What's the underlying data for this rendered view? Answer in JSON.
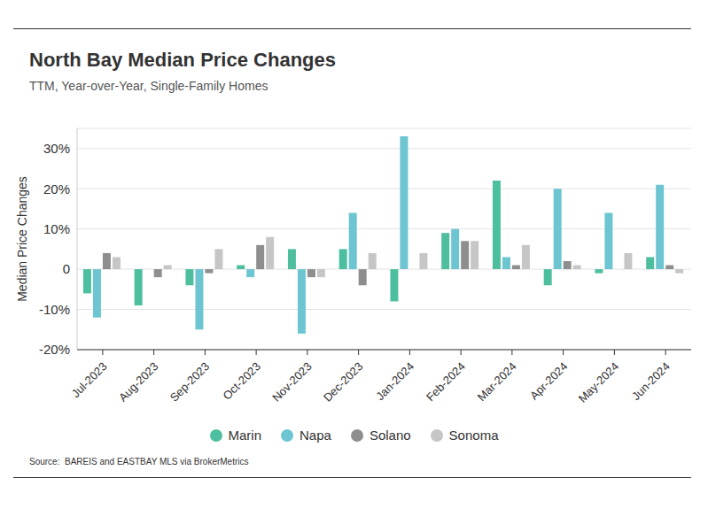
{
  "chart_data": {
    "type": "bar",
    "title": "North Bay Median Price Changes",
    "subtitle": "TTM, Year-over-Year, Single-Family Homes",
    "y_label": "Median Price Changes",
    "source": "Source:  BAREIS and EASTBAY MLS via BrokerMetrics",
    "categories": [
      "Jul-2023",
      "Aug-2023",
      "Sep-2023",
      "Oct-2023",
      "Nov-2023",
      "Dec-2023",
      "Jan-2024",
      "Feb-2024",
      "Mar-2024",
      "Apr-2024",
      "May-2024",
      "Jun-2024"
    ],
    "series": [
      {
        "name": "Marin",
        "color": "#4dbf9f",
        "values": [
          -6,
          -9,
          -4,
          1,
          5,
          5,
          -8,
          9,
          22,
          -4,
          -1,
          3
        ]
      },
      {
        "name": "Napa",
        "color": "#6cc5d1",
        "values": [
          -12,
          0,
          -15,
          -2,
          -16,
          14,
          33,
          10,
          3,
          20,
          14,
          21
        ]
      },
      {
        "name": "Solano",
        "color": "#8e8e8e",
        "values": [
          4,
          -2,
          -1,
          6,
          -2,
          -4,
          0,
          7,
          1,
          2,
          0,
          1
        ]
      },
      {
        "name": "Sonoma",
        "color": "#c6c6c6",
        "values": [
          3,
          1,
          5,
          8,
          -2,
          4,
          4,
          7,
          6,
          1,
          4,
          -1
        ]
      }
    ],
    "ylim": [
      -20,
      35
    ],
    "yticks": [
      {
        "value": -20,
        "label": "-20%"
      },
      {
        "value": -10,
        "label": "-10%"
      },
      0,
      {
        "value": 10,
        "label": "10%"
      },
      {
        "value": 20,
        "label": "20%"
      },
      {
        "value": 30,
        "label": "30%"
      }
    ],
    "grid": true,
    "legend": "bottom"
  }
}
